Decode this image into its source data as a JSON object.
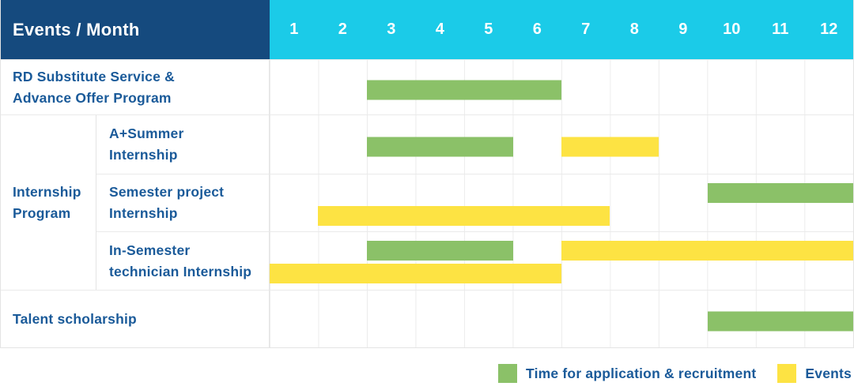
{
  "header": {
    "title": "Events / Month",
    "months": [
      "1",
      "2",
      "3",
      "4",
      "5",
      "6",
      "7",
      "8",
      "9",
      "10",
      "11",
      "12"
    ]
  },
  "colors": {
    "header_bg": "#154a7e",
    "months_bg": "#1bcbe8",
    "application_green": "#8bc168",
    "event_yellow": "#fde343",
    "label_text": "#1a5a99",
    "grid_line": "#ececec",
    "border": "#e4e4e4"
  },
  "group_cell": {
    "label_lines": [
      "Internship",
      "Program"
    ]
  },
  "rows": [
    {
      "id": "rd-substitute-service",
      "indent": false,
      "label_lines": [
        "RD Substitute Service &",
        "Advance Offer Program"
      ],
      "bars": [
        {
          "type": "application",
          "start": 3,
          "end": 6,
          "lane": "center"
        }
      ]
    },
    {
      "id": "a-plus-summer-internship",
      "indent": true,
      "label_lines": [
        "A+Summer",
        "Internship"
      ],
      "bars": [
        {
          "type": "application",
          "start": 3,
          "end": 5,
          "lane": "center"
        },
        {
          "type": "event",
          "start": 7,
          "end": 8,
          "lane": "center"
        }
      ]
    },
    {
      "id": "semester-project-internship",
      "indent": true,
      "label_lines": [
        "Semester project",
        "Internship"
      ],
      "bars": [
        {
          "type": "application",
          "start": 10,
          "end": 12,
          "lane": "top"
        },
        {
          "type": "event",
          "start": 2,
          "end": 7,
          "lane": "bottom"
        }
      ]
    },
    {
      "id": "in-semester-technician-internship",
      "indent": true,
      "label_lines": [
        "In-Semester",
        "technician Internship"
      ],
      "bars": [
        {
          "type": "application",
          "start": 3,
          "end": 5,
          "lane": "top"
        },
        {
          "type": "event",
          "start": 7,
          "end": 12,
          "lane": "top"
        },
        {
          "type": "event",
          "start": 1,
          "end": 6,
          "lane": "bottom"
        }
      ]
    },
    {
      "id": "talent-scholarship",
      "indent": false,
      "label_lines": [
        "Talent scholarship"
      ],
      "bars": [
        {
          "type": "application",
          "start": 10,
          "end": 12,
          "lane": "center"
        }
      ]
    }
  ],
  "legend": {
    "items": [
      {
        "type": "application",
        "label": "Time for application & recruitment"
      },
      {
        "type": "event",
        "label": "Events"
      }
    ]
  },
  "chart_data": {
    "type": "bar",
    "subtype": "gantt",
    "title": "Events / Month",
    "x_categories": [
      1,
      2,
      3,
      4,
      5,
      6,
      7,
      8,
      9,
      10,
      11,
      12
    ],
    "x_range": [
      1,
      12
    ],
    "grid": true,
    "legend_position": "bottom-right",
    "series_legend": [
      {
        "name": "Time for application & recruitment",
        "color": "#8bc168"
      },
      {
        "name": "Events",
        "color": "#fde343"
      }
    ],
    "tasks": [
      {
        "row": "RD Substitute Service & Advance Offer Program",
        "series": "Time for application & recruitment",
        "start_month": 3,
        "end_month": 6
      },
      {
        "row": "A+Summer Internship",
        "group": "Internship Program",
        "series": "Time for application & recruitment",
        "start_month": 3,
        "end_month": 5
      },
      {
        "row": "A+Summer Internship",
        "group": "Internship Program",
        "series": "Events",
        "start_month": 7,
        "end_month": 8
      },
      {
        "row": "Semester project Internship",
        "group": "Internship Program",
        "series": "Time for application & recruitment",
        "start_month": 10,
        "end_month": 12
      },
      {
        "row": "Semester project Internship",
        "group": "Internship Program",
        "series": "Events",
        "start_month": 2,
        "end_month": 7
      },
      {
        "row": "In-Semester technician Internship",
        "group": "Internship Program",
        "series": "Time for application & recruitment",
        "start_month": 3,
        "end_month": 5
      },
      {
        "row": "In-Semester technician Internship",
        "group": "Internship Program",
        "series": "Events",
        "start_month": 7,
        "end_month": 12
      },
      {
        "row": "In-Semester technician Internship",
        "group": "Internship Program",
        "series": "Events",
        "start_month": 1,
        "end_month": 6
      },
      {
        "row": "Talent scholarship",
        "series": "Time for application & recruitment",
        "start_month": 10,
        "end_month": 12
      }
    ]
  }
}
